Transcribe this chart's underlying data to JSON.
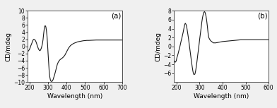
{
  "panel_a": {
    "label": "(a)",
    "xlabel": "Wavelength (nm)",
    "ylabel": "CD/mdeg",
    "xlim": [
      190,
      700
    ],
    "ylim": [
      -10,
      10
    ],
    "xticks": [
      200,
      300,
      400,
      500,
      600,
      700
    ],
    "yticks": [
      -10,
      -8,
      -6,
      -4,
      -2,
      0,
      2,
      4,
      6,
      8,
      10
    ],
    "x": [
      190,
      193,
      196,
      200,
      203,
      206,
      210,
      213,
      216,
      219,
      222,
      225,
      228,
      231,
      234,
      237,
      240,
      243,
      246,
      249,
      252,
      255,
      258,
      261,
      264,
      267,
      270,
      273,
      276,
      279,
      282,
      285,
      288,
      291,
      294,
      297,
      300,
      303,
      306,
      309,
      312,
      315,
      318,
      321,
      324,
      327,
      330,
      335,
      340,
      345,
      350,
      355,
      360,
      365,
      370,
      375,
      380,
      390,
      400,
      410,
      420,
      430,
      440,
      450,
      460,
      470,
      480,
      490,
      500,
      510,
      520,
      540,
      560,
      580,
      600,
      620,
      640,
      660,
      680,
      700
    ],
    "y": [
      -1.5,
      -1.3,
      -1.1,
      -0.8,
      -0.4,
      0.1,
      0.6,
      1.0,
      1.4,
      1.8,
      2.0,
      2.0,
      1.9,
      1.7,
      1.4,
      1.0,
      0.5,
      0.0,
      -0.4,
      -0.8,
      -1.0,
      -1.2,
      -1.1,
      -0.8,
      -0.4,
      0.2,
      0.9,
      2.0,
      3.5,
      4.8,
      5.7,
      5.8,
      5.5,
      4.5,
      3.0,
      0.8,
      -2.0,
      -4.5,
      -7.0,
      -8.5,
      -9.3,
      -9.7,
      -9.8,
      -9.8,
      -9.6,
      -9.3,
      -8.8,
      -8.0,
      -7.0,
      -6.0,
      -5.0,
      -4.4,
      -4.0,
      -3.7,
      -3.5,
      -3.3,
      -3.1,
      -2.5,
      -1.5,
      -0.5,
      0.2,
      0.6,
      0.9,
      1.1,
      1.3,
      1.4,
      1.5,
      1.6,
      1.65,
      1.7,
      1.7,
      1.75,
      1.8,
      1.8,
      1.8,
      1.8,
      1.8,
      1.8,
      1.8,
      1.8
    ]
  },
  "panel_b": {
    "label": "(b)",
    "xlabel": "Wavelength (nm)",
    "ylabel": "CD/mdeg",
    "xlim": [
      190,
      600
    ],
    "ylim": [
      -8,
      8
    ],
    "xticks": [
      200,
      300,
      400,
      500,
      600
    ],
    "yticks": [
      -6,
      -4,
      -2,
      0,
      2,
      4,
      6,
      8
    ],
    "x": [
      190,
      193,
      196,
      199,
      202,
      205,
      208,
      211,
      214,
      217,
      220,
      223,
      226,
      229,
      232,
      235,
      238,
      241,
      244,
      247,
      250,
      253,
      256,
      259,
      262,
      265,
      268,
      271,
      274,
      277,
      280,
      283,
      286,
      289,
      292,
      295,
      298,
      301,
      304,
      307,
      310,
      313,
      316,
      319,
      322,
      325,
      328,
      331,
      334,
      337,
      340,
      345,
      350,
      355,
      360,
      370,
      380,
      390,
      400,
      420,
      440,
      460,
      480,
      500,
      520,
      540,
      560,
      580,
      600
    ],
    "y": [
      -3.2,
      -3.5,
      -3.5,
      -3.2,
      -2.5,
      -2.0,
      -1.4,
      -0.8,
      -0.2,
      0.5,
      1.2,
      1.8,
      2.5,
      3.2,
      4.0,
      4.8,
      5.2,
      5.0,
      4.5,
      3.5,
      2.5,
      1.4,
      0.2,
      -1.0,
      -2.2,
      -3.4,
      -4.5,
      -5.5,
      -6.2,
      -6.3,
      -6.2,
      -5.5,
      -4.5,
      -3.3,
      -2.0,
      -0.8,
      0.5,
      1.8,
      3.0,
      4.2,
      5.5,
      6.5,
      7.2,
      7.7,
      7.8,
      7.5,
      6.8,
      5.8,
      4.5,
      3.0,
      2.0,
      1.5,
      1.2,
      1.0,
      0.8,
      0.8,
      0.9,
      1.0,
      1.1,
      1.2,
      1.3,
      1.4,
      1.5,
      1.5,
      1.5,
      1.5,
      1.5,
      1.5,
      1.5
    ]
  },
  "bg_color": "#f0f0f0",
  "plot_bg_color": "#ffffff",
  "line_color": "#1a1a1a",
  "label_fontsize": 6.5,
  "tick_fontsize": 5.5,
  "panel_label_fontsize": 7.5,
  "line_width": 0.8
}
